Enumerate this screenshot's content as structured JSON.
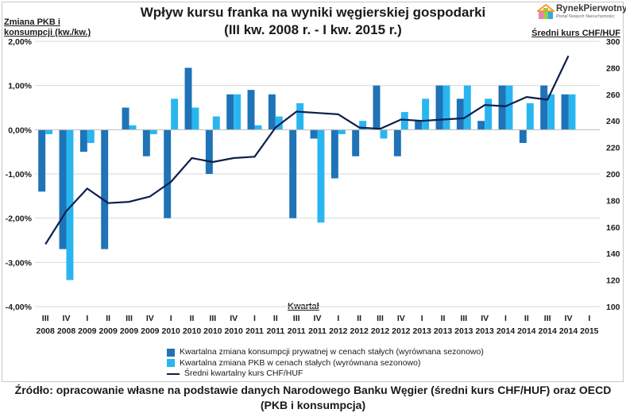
{
  "chart_data": {
    "type": "bar",
    "title": "Wpływ kursu franka na wyniki węgierskiej gospodarki",
    "subtitle": "(III kw. 2008 r. - I kw. 2015 r.)",
    "ylabel_left": "Zmiana PKB i konsumpcji (kw./kw.)",
    "ylabel_right": "Średni kurs CHF/HUF",
    "xlabel": "Kwartał",
    "ylim_left": [
      -4.0,
      2.0
    ],
    "ylim_right": [
      100,
      300
    ],
    "yticks_left": [
      "2,00%",
      "1,00%",
      "0,00%",
      "-1,00%",
      "-2,00%",
      "-3,00%",
      "-4,00%"
    ],
    "yticks_right": [
      "300",
      "280",
      "260",
      "240",
      "220",
      "200",
      "180",
      "160",
      "140",
      "120",
      "100"
    ],
    "quarters": [
      "III",
      "IV",
      "I",
      "II",
      "III",
      "IV",
      "I",
      "II",
      "III",
      "IV",
      "I",
      "II",
      "III",
      "IV",
      "I",
      "II",
      "III",
      "IV",
      "I",
      "II",
      "III",
      "IV",
      "I",
      "II",
      "III",
      "IV",
      "I"
    ],
    "years": [
      "2008",
      "2008",
      "2009",
      "2009",
      "2009",
      "2009",
      "2010",
      "2010",
      "2010",
      "2010",
      "2011",
      "2011",
      "2011",
      "2011",
      "2012",
      "2012",
      "2012",
      "2012",
      "2013",
      "2013",
      "2013",
      "2013",
      "2014",
      "2014",
      "2014",
      "2014",
      "2015"
    ],
    "series": [
      {
        "name": "Kwartalna zmiana konsumpcji prywatnej w cenach stałych (wyrównana sezonowo)",
        "kind": "bar",
        "axis": "left",
        "color": "#1f73b7",
        "values": [
          -1.4,
          -2.7,
          -0.5,
          -2.7,
          0.5,
          -0.6,
          -2.0,
          1.4,
          -1.0,
          0.8,
          0.9,
          0.8,
          -2.0,
          -0.2,
          -1.1,
          -0.6,
          1.0,
          -0.6,
          0.2,
          1.0,
          0.7,
          0.2,
          1.0,
          -0.3,
          1.0,
          0.8,
          0.0
        ]
      },
      {
        "name": "Kwartalna zmiana PKB w cenach stałych (wyrównana sezonowo)",
        "kind": "bar",
        "axis": "left",
        "color": "#29b6f0",
        "values": [
          -0.1,
          -3.4,
          -0.3,
          0.0,
          0.1,
          -0.1,
          0.7,
          0.5,
          0.3,
          0.8,
          0.1,
          0.3,
          0.6,
          -2.1,
          -0.1,
          0.2,
          -0.2,
          0.4,
          0.7,
          1.0,
          1.0,
          0.7,
          1.0,
          0.6,
          0.8,
          0.8,
          0.0
        ]
      },
      {
        "name": "Średni kwartalny kurs CHF/HUF",
        "kind": "line",
        "axis": "right",
        "color": "#0d1f4c",
        "values": [
          147,
          172,
          189,
          178,
          179,
          183,
          194,
          212,
          209,
          212,
          213,
          235,
          247,
          246,
          245,
          235,
          234,
          241,
          240,
          241,
          242,
          252,
          251,
          258,
          256,
          289,
          null
        ]
      }
    ],
    "legend": "bottom-center",
    "grid": true
  },
  "source": {
    "line1": "Źródło: opracowanie własne na podstawie danych Narodowego Banku Węgier (średni kurs CHF/HUF) oraz OECD",
    "line2": "(PKB i konsumpcja)"
  },
  "logo": {
    "name": "RynekPierwotny",
    "tagline": "Portal Nowych Nieruchomości"
  }
}
